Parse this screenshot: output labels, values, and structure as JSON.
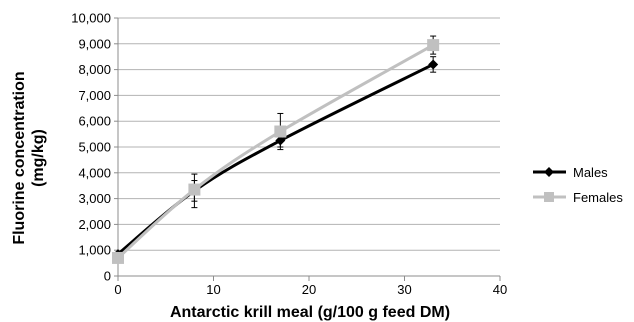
{
  "chart_data": {
    "type": "line",
    "xlabel": "Antarctic krill meal (g/100 g feed DM)",
    "ylabel_lines": [
      "Fluorine concentration",
      "(mg/kg)"
    ],
    "xlim": [
      0,
      40
    ],
    "ylim": [
      0,
      10000
    ],
    "x_ticks": [
      "0",
      "10",
      "20",
      "30",
      "40"
    ],
    "y_ticks": [
      "0",
      "1,000",
      "2,000",
      "3,000",
      "4,000",
      "5,000",
      "6,000",
      "7,000",
      "8,000",
      "9,000",
      "10,000"
    ],
    "grid": true,
    "legend_position": "right",
    "series": [
      {
        "name": "Males",
        "color": "#000000",
        "marker": "diamond",
        "x": [
          0,
          8,
          17,
          33
        ],
        "y": [
          850,
          3300,
          5250,
          8200
        ],
        "err_low": [
          850,
          2900,
          4900,
          7900
        ],
        "err_high": [
          850,
          3700,
          5600,
          8500
        ]
      },
      {
        "name": "Females",
        "color": "#c0c0c0",
        "marker": "square",
        "x": [
          0,
          8,
          17,
          33
        ],
        "y": [
          700,
          3350,
          5600,
          8950
        ],
        "err_low": [
          700,
          2650,
          5000,
          8600
        ],
        "err_high": [
          700,
          3950,
          6300,
          9300
        ]
      }
    ]
  }
}
